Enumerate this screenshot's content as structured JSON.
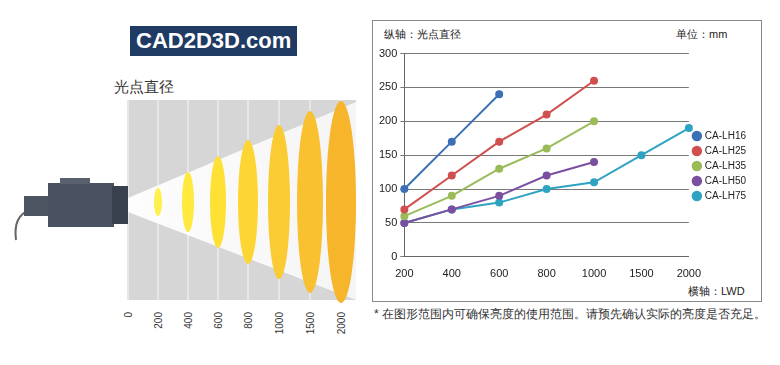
{
  "watermark": "CAD2D3D.com",
  "illustration": {
    "title": "光点直径",
    "ticks": [
      0,
      200,
      400,
      600,
      800,
      1000,
      1500,
      2000
    ]
  },
  "note": "* 在图形范围内可确保亮度的使用范围。请预先确认实际的亮度是否充足。",
  "chart_data": {
    "type": "line",
    "ylabel": "纵轴：光点直径",
    "xlabel": "横轴：LWD",
    "annotations": [
      "单位：mm"
    ],
    "categories": [
      "200",
      "400",
      "600",
      "800",
      "1000",
      "1500",
      "2000"
    ],
    "series": [
      {
        "name": "CA-LH16",
        "color": "#3b6fb6",
        "values": [
          100,
          170,
          240,
          null,
          null,
          null,
          null
        ]
      },
      {
        "name": "CA-LH25",
        "color": "#d0504f",
        "values": [
          70,
          120,
          170,
          210,
          260,
          null,
          null
        ]
      },
      {
        "name": "CA-LH35",
        "color": "#9bbb59",
        "values": [
          60,
          90,
          130,
          160,
          200,
          null,
          null
        ]
      },
      {
        "name": "CA-LH50",
        "color": "#7b4fa0",
        "values": [
          50,
          70,
          90,
          120,
          140,
          null,
          null
        ]
      },
      {
        "name": "CA-LH75",
        "color": "#2fa3c2",
        "values": [
          50,
          70,
          80,
          100,
          110,
          150,
          190
        ]
      }
    ],
    "ylim": [
      0,
      300
    ],
    "yticks": [
      0,
      50,
      100,
      150,
      200,
      250,
      300
    ],
    "grid": true,
    "legend": "right",
    "marker": "circle"
  }
}
